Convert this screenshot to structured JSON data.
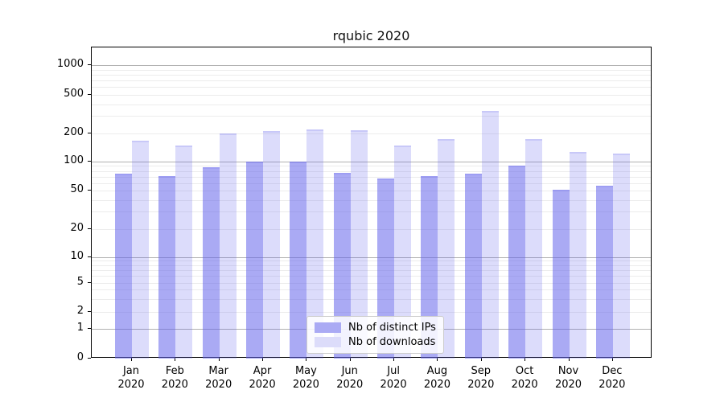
{
  "chart_data": {
    "type": "bar",
    "title": "rqubic 2020",
    "categories": [
      "Jan",
      "Feb",
      "Mar",
      "Apr",
      "May",
      "Jun",
      "Jul",
      "Aug",
      "Sep",
      "Oct",
      "Nov",
      "Dec"
    ],
    "year": "2020",
    "series": [
      {
        "name": "Nb of distinct IPs",
        "values": [
          75,
          71,
          88,
          100,
          100,
          77,
          67,
          71,
          75,
          91,
          51,
          56
        ],
        "color": "#aaaaf4",
        "fill_rgba": "rgba(100,100,235,0.55)"
      },
      {
        "name": "Nb of downloads",
        "values": [
          165,
          148,
          200,
          210,
          220,
          215,
          148,
          172,
          340,
          172,
          127,
          122
        ],
        "color": "#dcdcfa",
        "fill_rgba": "rgba(100,100,235,0.225)"
      }
    ],
    "xlabel": "",
    "ylabel": "",
    "yscale": "symlog",
    "ylim": [
      0,
      1500
    ],
    "y_ticks": [
      0,
      1,
      2,
      5,
      10,
      20,
      50,
      100,
      200,
      500,
      1000
    ],
    "y_major_gridlines": [
      1,
      10,
      100,
      1000
    ],
    "y_minor_gridlines": [
      2,
      3,
      4,
      5,
      6,
      7,
      8,
      9,
      20,
      30,
      40,
      50,
      60,
      70,
      80,
      90,
      200,
      300,
      400,
      500,
      600,
      700,
      800,
      900
    ],
    "grid": true,
    "legend_position": "lower-center"
  },
  "colors": {
    "major_grid": "#b0b0b0",
    "minor_grid": "#ececec",
    "spine": "#000000",
    "text": "#000000",
    "bar_edge_rgba": "rgba(100,100,235,0.17)",
    "legend_border": "#cccccc",
    "legend_bg": "rgba(255,255,255,0.85)"
  }
}
